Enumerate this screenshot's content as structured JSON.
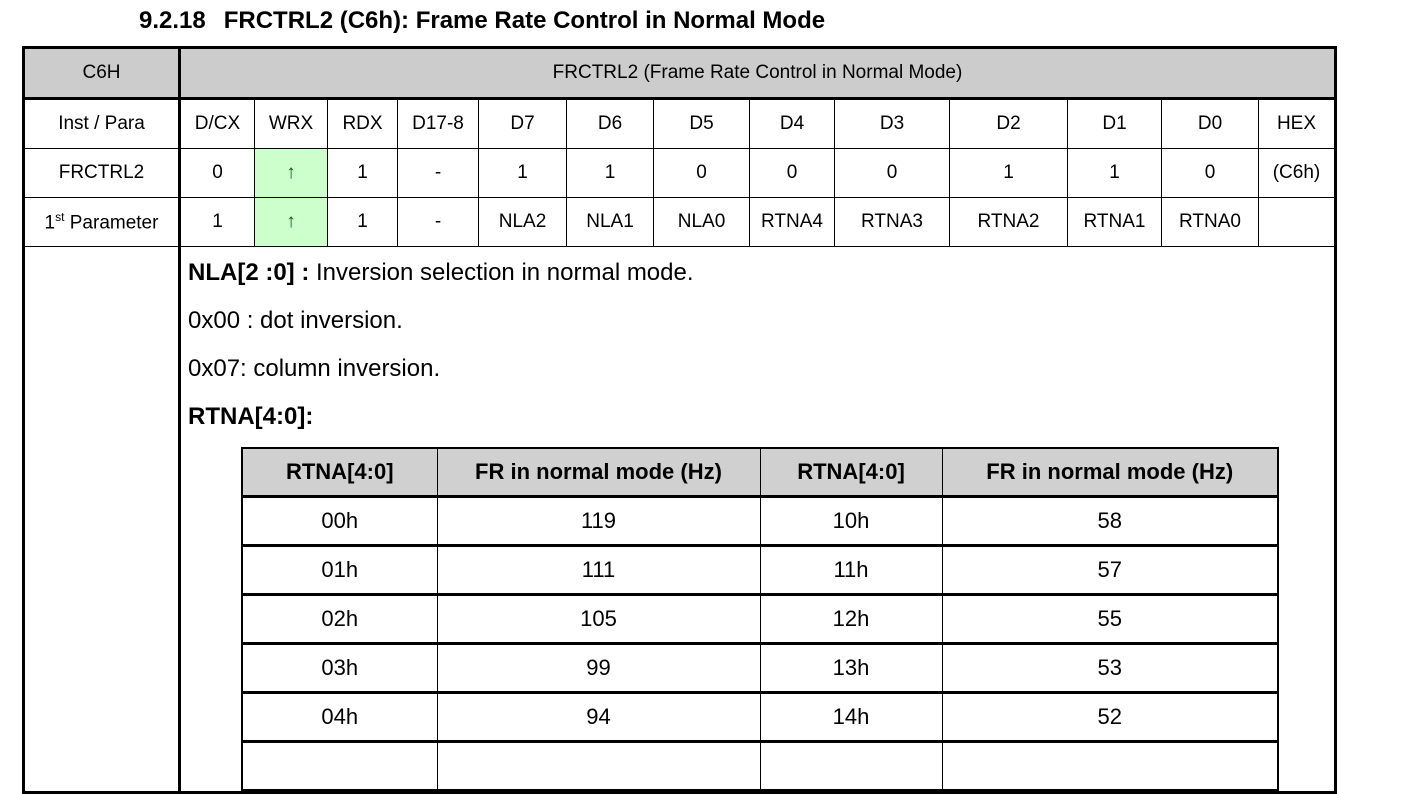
{
  "title": {
    "number": "9.2.18",
    "text": "FRCTRL2 (C6h): Frame Rate Control in Normal Mode"
  },
  "register": {
    "code": "C6H",
    "name": "FRCTRL2 (Frame Rate Control in Normal Mode)",
    "columns": [
      "Inst / Para",
      "D/CX",
      "WRX",
      "RDX",
      "D17-8",
      "D7",
      "D6",
      "D5",
      "D4",
      "D3",
      "D2",
      "D1",
      "D0",
      "HEX"
    ],
    "rows": [
      {
        "label": "FRCTRL2",
        "cells": [
          "0",
          "↑",
          "1",
          "-",
          "1",
          "1",
          "0",
          "0",
          "0",
          "1",
          "1",
          "0",
          "(C6h)"
        ]
      },
      {
        "label_num": "1",
        "label_sup": "st",
        "label_rest": " Parameter",
        "cells": [
          "1",
          "↑",
          "1",
          "-",
          "NLA2",
          "NLA1",
          "NLA0",
          "RTNA4",
          "RTNA3",
          "RTNA2",
          "RTNA1",
          "RTNA0",
          ""
        ]
      }
    ],
    "highlight_color": "#ccffcc"
  },
  "description": {
    "nla_label": "NLA[2 :0] :",
    "nla_text": " Inversion selection in normal mode.",
    "line1": "0x00 : dot inversion.",
    "line2": "0x07: column inversion.",
    "rtna_label": "RTNA[4:0]:"
  },
  "fr_table": {
    "headers": [
      "RTNA[4:0]",
      "FR in normal mode (Hz)",
      "RTNA[4:0]",
      "FR in normal mode (Hz)"
    ],
    "rows": [
      [
        "00h",
        "119",
        "10h",
        "58"
      ],
      [
        "01h",
        "111",
        "11h",
        "57"
      ],
      [
        "02h",
        "105",
        "12h",
        "55"
      ],
      [
        "03h",
        "99",
        "13h",
        "53"
      ],
      [
        "04h",
        "94",
        "14h",
        "52"
      ]
    ]
  }
}
